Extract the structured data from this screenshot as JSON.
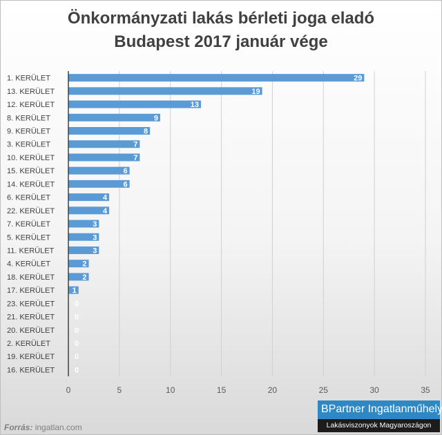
{
  "chart_data": {
    "type": "bar",
    "orientation": "horizontal",
    "title_line1": "Önkormányzati lakás bérleti joga eladó",
    "title_line2": "Budapest 2017 január vége",
    "categories": [
      "1. KERÜLET",
      "13. KERÜLET",
      "12. KERÜLET",
      "8. KERÜLET",
      "9. KERÜLET",
      "3. KERÜLET",
      "10. KERÜLET",
      "15. KERÜLET",
      "14. KERÜLET",
      "6. KERÜLET",
      "22. KERÜLET",
      "7. KERÜLET",
      "5. KERÜLET",
      "11. KERÜLET",
      "4. KERÜLET",
      "18. KERÜLET",
      "17. KERÜLET",
      "23. KERÜLET",
      "21. KERÜLET",
      "20. KERÜLET",
      "2. KERÜLET",
      "19. KERÜLET",
      "16. KERÜLET"
    ],
    "values": [
      29,
      19,
      13,
      9,
      8,
      7,
      7,
      6,
      6,
      4,
      4,
      3,
      3,
      3,
      2,
      2,
      1,
      0,
      0,
      0,
      0,
      0,
      0
    ],
    "xlim": [
      0,
      35
    ],
    "xticks": [
      0,
      5,
      10,
      15,
      20,
      25,
      30,
      35
    ],
    "grid": true,
    "legend": "none",
    "bar_color": "#5b9bd5"
  },
  "source": {
    "label": "Forrás:",
    "text": "ingatlan.com"
  },
  "brand": {
    "line1": "BPartner Ingatlanműhely",
    "line2": "Lakásviszonyok Magyaroszágon"
  }
}
